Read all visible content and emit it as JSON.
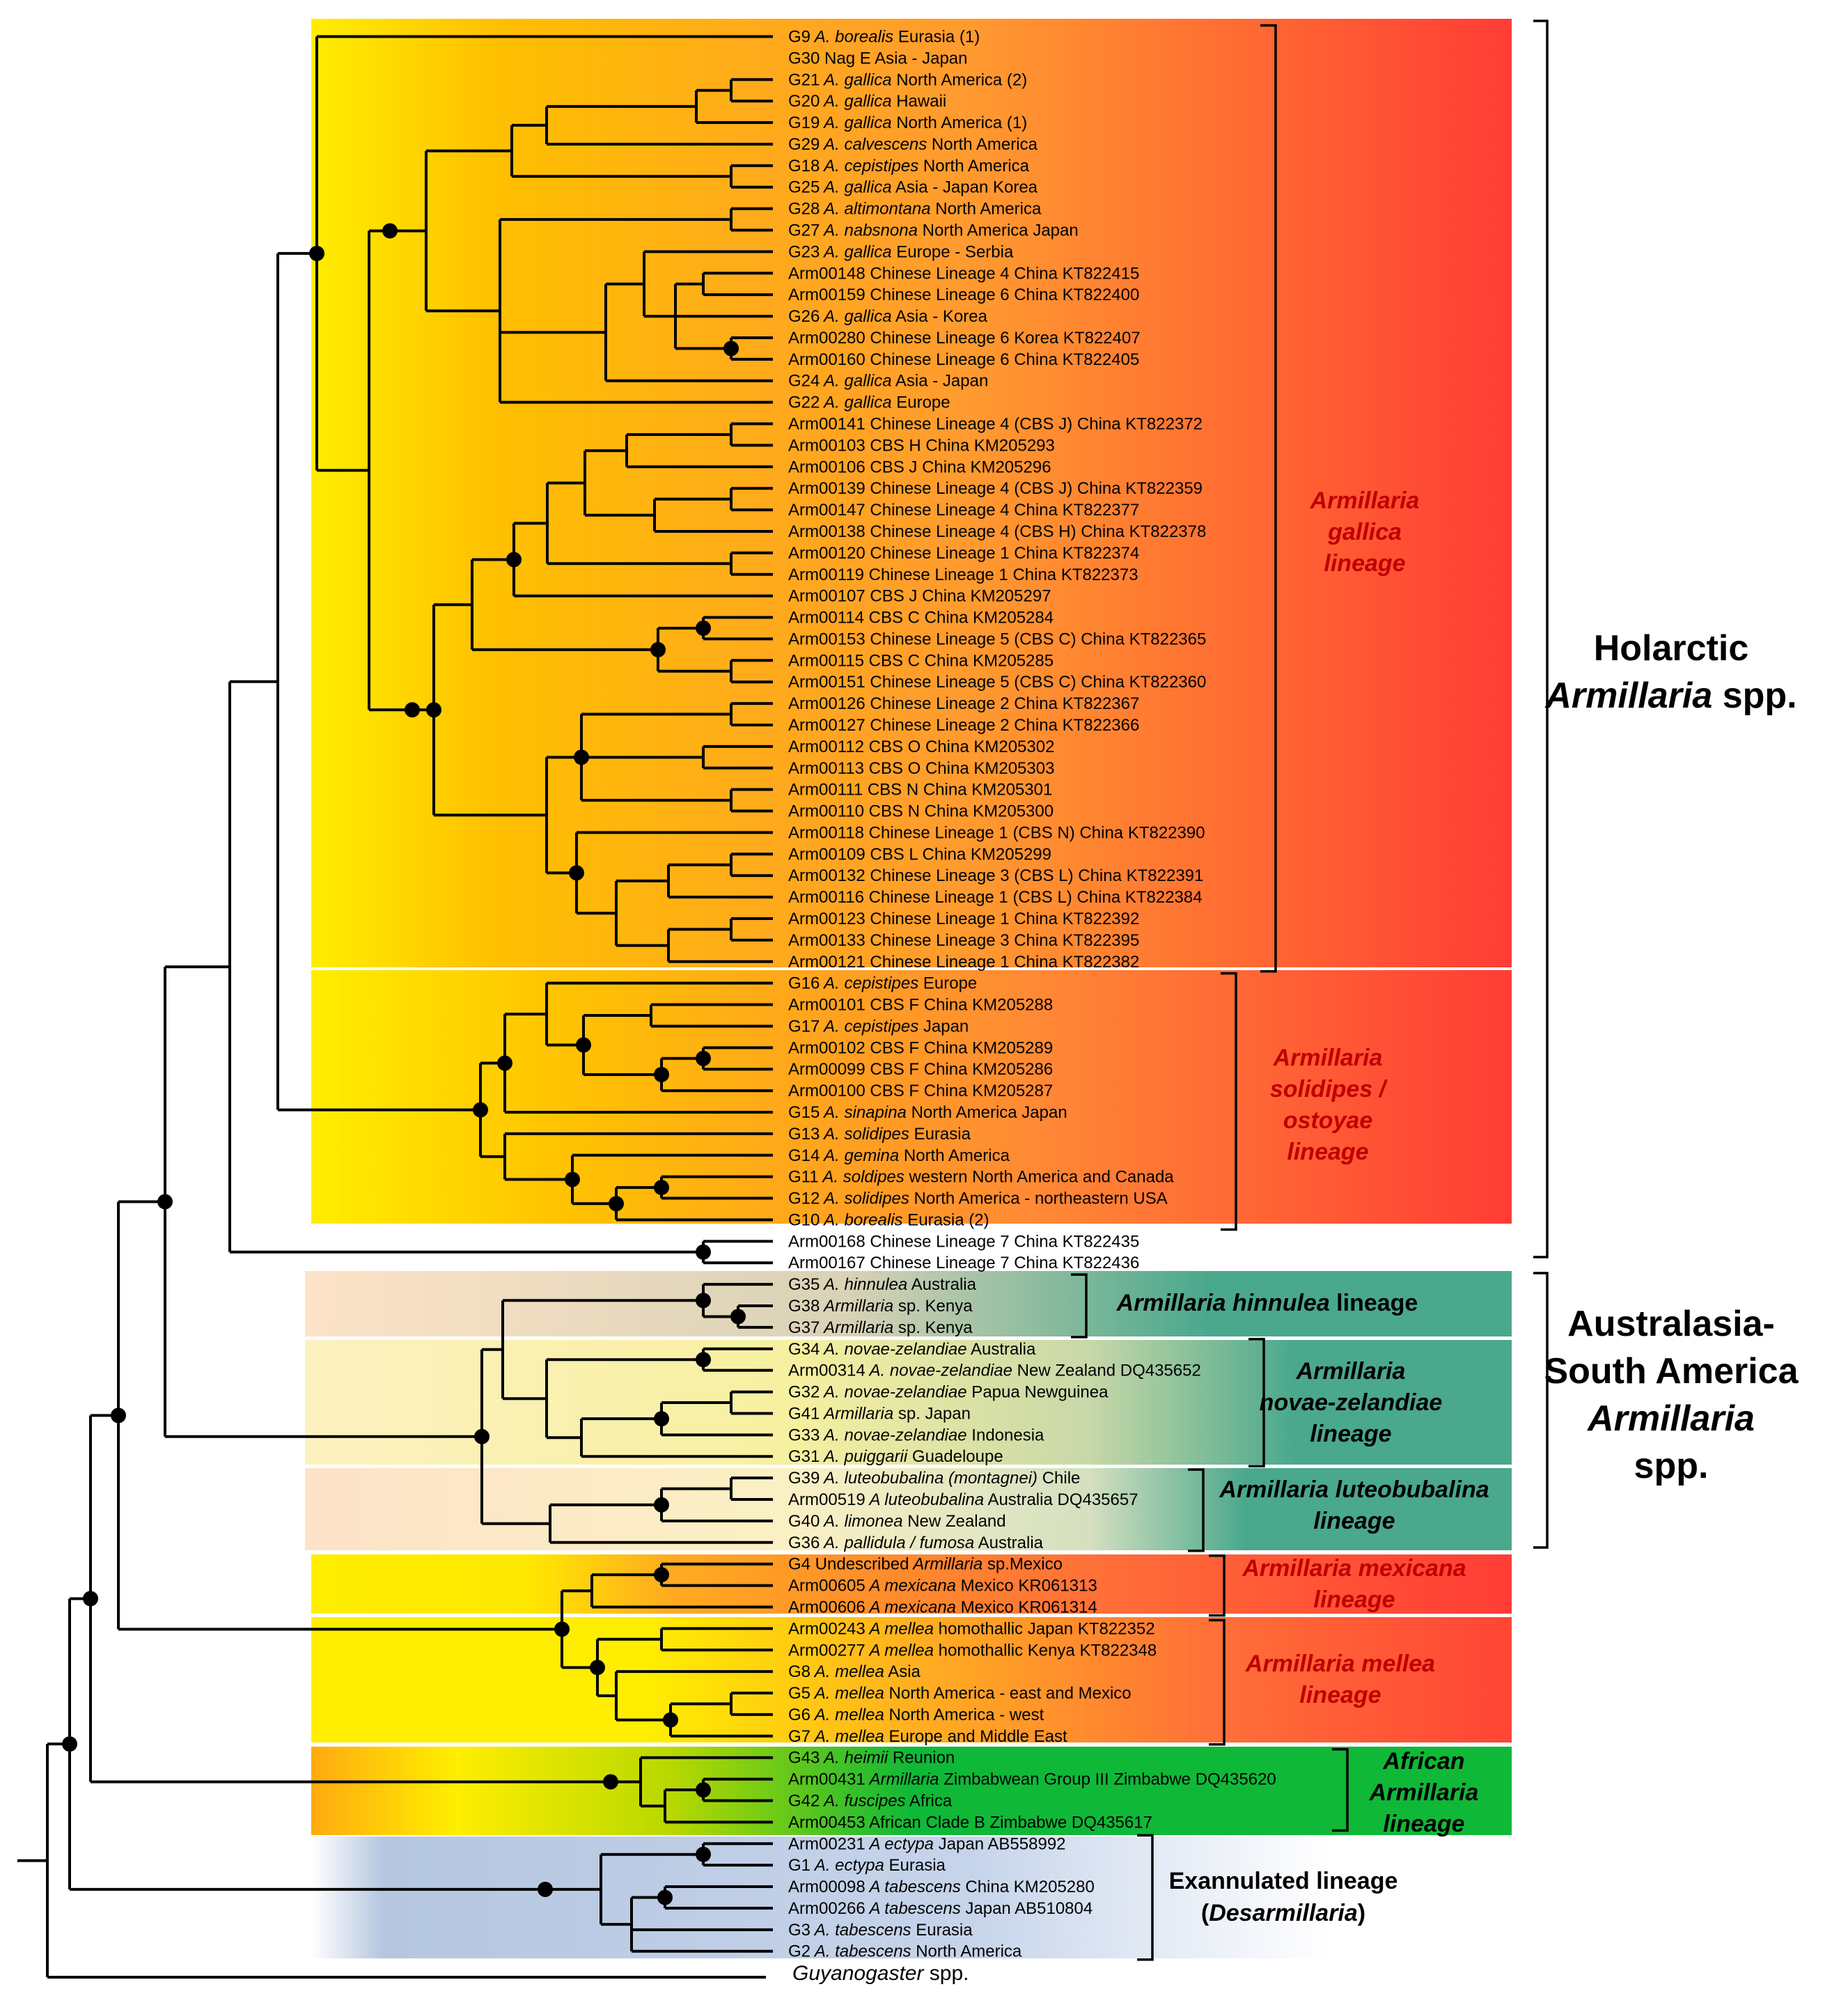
{
  "groups": {
    "holarctic": {
      "line1": "Holarctic",
      "line2a": "Armillaria",
      "line2b": " spp."
    },
    "australasia": {
      "line1": "Australasia-",
      "line2": "South America",
      "line3": "Armillaria",
      "line4": "spp."
    }
  },
  "lineages": {
    "gallica": {
      "l1": "Armillaria",
      "l2": "gallica",
      "l3": "lineage"
    },
    "solidipes": {
      "l1": "Armillaria",
      "l2": "solidipes /",
      "l3": "ostoyae",
      "l4": "lineage"
    },
    "hinnulea": {
      "l1": "Armillaria hinnulea",
      "l2": " lineage"
    },
    "novae": {
      "l1": "Armillaria",
      "l2": "novae-zelandiae",
      "l3": "lineage"
    },
    "luteobubalina": {
      "l1": "Armillaria luteobubalina",
      "l2": "lineage"
    },
    "mexicana": {
      "l1": "Armillaria mexicana",
      "l2": "lineage"
    },
    "mellea": {
      "l1": "Armillaria mellea",
      "l2": "lineage"
    },
    "african": {
      "l1": "African",
      "l2": "Armillaria",
      "l3": "lineage"
    },
    "exannulated": {
      "l1": "Exannulated lineage",
      "l2a": "(",
      "l2b": "Desarmillaria",
      "l2c": ")"
    }
  },
  "taxa": [
    {
      "pre": "G9",
      "sp": "A. borealis",
      "post": "Eurasia (1)"
    },
    {
      "pre": "G30 Nag E Asia - Japan",
      "sp": "",
      "post": ""
    },
    {
      "pre": "G21",
      "sp": "A. gallica",
      "post": "North America (2)"
    },
    {
      "pre": "G20",
      "sp": "A. gallica",
      "post": "Hawaii"
    },
    {
      "pre": "G19",
      "sp": "A. gallica",
      "post": "North America (1)"
    },
    {
      "pre": "G29",
      "sp": "A. calvescens",
      "post": "North America"
    },
    {
      "pre": "G18",
      "sp": "A. cepistipes",
      "post": "North America"
    },
    {
      "pre": "G25",
      "sp": "A. gallica",
      "post": "Asia - Japan Korea"
    },
    {
      "pre": "G28",
      "sp": "A. altimontana",
      "post": "North America"
    },
    {
      "pre": "G27",
      "sp": "A. nabsnona",
      "post": "North America Japan"
    },
    {
      "pre": "G23",
      "sp": "A. gallica",
      "post": "Europe - Serbia"
    },
    {
      "pre": "Arm00148 Chinese Lineage 4 China KT822415",
      "sp": "",
      "post": ""
    },
    {
      "pre": "Arm00159 Chinese Lineage 6 China KT822400",
      "sp": "",
      "post": ""
    },
    {
      "pre": "G26",
      "sp": "A. gallica",
      "post": "Asia - Korea"
    },
    {
      "pre": "Arm00280 Chinese Lineage 6 Korea KT822407",
      "sp": "",
      "post": ""
    },
    {
      "pre": "Arm00160 Chinese Lineage 6 China KT822405",
      "sp": "",
      "post": ""
    },
    {
      "pre": "G24",
      "sp": "A. gallica",
      "post": "Asia - Japan"
    },
    {
      "pre": "G22",
      "sp": "A. gallica",
      "post": "Europe"
    },
    {
      "pre": "Arm00141 Chinese Lineage 4 (CBS J) China KT822372",
      "sp": "",
      "post": ""
    },
    {
      "pre": "Arm00103 CBS H China KM205293",
      "sp": "",
      "post": ""
    },
    {
      "pre": "Arm00106 CBS J China KM205296",
      "sp": "",
      "post": ""
    },
    {
      "pre": "Arm00139 Chinese Lineage 4 (CBS J) China KT822359",
      "sp": "",
      "post": ""
    },
    {
      "pre": "Arm00147 Chinese Lineage 4 China KT822377",
      "sp": "",
      "post": ""
    },
    {
      "pre": "Arm00138 Chinese Lineage 4 (CBS H) China KT822378",
      "sp": "",
      "post": ""
    },
    {
      "pre": "Arm00120 Chinese Lineage 1 China KT822374",
      "sp": "",
      "post": ""
    },
    {
      "pre": "Arm00119 Chinese Lineage 1 China KT822373",
      "sp": "",
      "post": ""
    },
    {
      "pre": "Arm00107 CBS J China KM205297",
      "sp": "",
      "post": ""
    },
    {
      "pre": "Arm00114 CBS C China KM205284",
      "sp": "",
      "post": ""
    },
    {
      "pre": "Arm00153 Chinese Lineage 5 (CBS C) China KT822365",
      "sp": "",
      "post": ""
    },
    {
      "pre": "Arm00115 CBS C China KM205285",
      "sp": "",
      "post": ""
    },
    {
      "pre": "Arm00151 Chinese Lineage 5 (CBS C) China KT822360",
      "sp": "",
      "post": ""
    },
    {
      "pre": "Arm00126 Chinese Lineage 2 China KT822367",
      "sp": "",
      "post": ""
    },
    {
      "pre": "Arm00127 Chinese Lineage 2 China KT822366",
      "sp": "",
      "post": ""
    },
    {
      "pre": "Arm00112 CBS O China KM205302",
      "sp": "",
      "post": ""
    },
    {
      "pre": "Arm00113 CBS O China KM205303",
      "sp": "",
      "post": ""
    },
    {
      "pre": "Arm00111 CBS N China KM205301",
      "sp": "",
      "post": ""
    },
    {
      "pre": "Arm00110 CBS N China KM205300",
      "sp": "",
      "post": ""
    },
    {
      "pre": "Arm00118 Chinese Lineage 1 (CBS N) China KT822390",
      "sp": "",
      "post": ""
    },
    {
      "pre": "Arm00109 CBS L China KM205299",
      "sp": "",
      "post": ""
    },
    {
      "pre": "Arm00132 Chinese Lineage 3 (CBS L) China KT822391",
      "sp": "",
      "post": ""
    },
    {
      "pre": "Arm00116 Chinese Lineage 1 (CBS L) China KT822384",
      "sp": "",
      "post": ""
    },
    {
      "pre": "Arm00123 Chinese Lineage 1 China KT822392",
      "sp": "",
      "post": ""
    },
    {
      "pre": "Arm00133 Chinese Lineage 3 China KT822395",
      "sp": "",
      "post": ""
    },
    {
      "pre": "Arm00121 Chinese Lineage 1 China KT822382",
      "sp": "",
      "post": ""
    },
    {
      "pre": "G16",
      "sp": "A. cepistipes",
      "post": "Europe"
    },
    {
      "pre": "Arm00101 CBS F China KM205288",
      "sp": "",
      "post": ""
    },
    {
      "pre": "G17",
      "sp": "A. cepistipes",
      "post": "Japan"
    },
    {
      "pre": "Arm00102 CBS F China KM205289",
      "sp": "",
      "post": ""
    },
    {
      "pre": "Arm00099 CBS F China KM205286",
      "sp": "",
      "post": ""
    },
    {
      "pre": "Arm00100 CBS F China KM205287",
      "sp": "",
      "post": ""
    },
    {
      "pre": "G15",
      "sp": "A. sinapina",
      "post": "North America Japan"
    },
    {
      "pre": "G13",
      "sp": "A. solidipes",
      "post": "Eurasia"
    },
    {
      "pre": "G14",
      "sp": "A. gemina",
      "post": "North America"
    },
    {
      "pre": "G11",
      "sp": "A. soldipes",
      "post": "western North America and Canada"
    },
    {
      "pre": "G12",
      "sp": "A. solidipes",
      "post": "North America - northeastern USA"
    },
    {
      "pre": "G10",
      "sp": "A. borealis",
      "post": "Eurasia (2)"
    },
    {
      "pre": "Arm00168 Chinese Lineage 7 China KT822435",
      "sp": "",
      "post": ""
    },
    {
      "pre": "Arm00167 Chinese Lineage 7 China KT822436",
      "sp": "",
      "post": ""
    },
    {
      "pre": "G35",
      "sp": "A. hinnulea",
      "post": "Australia"
    },
    {
      "pre": "G38",
      "sp": "Armillaria",
      "post": "sp. Kenya"
    },
    {
      "pre": "G37",
      "sp": "Armillaria",
      "post": "sp. Kenya"
    },
    {
      "pre": "G34",
      "sp": "A. novae-zelandiae",
      "post": "Australia"
    },
    {
      "pre": "Arm00314",
      "sp": "A. novae-zelandiae",
      "post": "New Zealand DQ435652"
    },
    {
      "pre": "G32",
      "sp": "A. novae-zelandiae",
      "post": "Papua Newguinea"
    },
    {
      "pre": "G41",
      "sp": "Armillaria",
      "post": "sp. Japan"
    },
    {
      "pre": "G33",
      "sp": "A. novae-zelandiae",
      "post": "Indonesia"
    },
    {
      "pre": "G31",
      "sp": "A. puiggarii",
      "post": "Guadeloupe"
    },
    {
      "pre": "G39",
      "sp": "A. luteobubalina (montagnei)",
      "post": "Chile"
    },
    {
      "pre": "Arm00519",
      "sp": "A luteobubalina",
      "post": "Australia DQ435657"
    },
    {
      "pre": "G40",
      "sp": "A. limonea",
      "post": "New Zealand"
    },
    {
      "pre": "G36",
      "sp": "A. pallidula / fumosa",
      "post": "Australia"
    },
    {
      "pre": "G4 Undescribed",
      "sp": "Armillaria",
      "post": "sp.Mexico"
    },
    {
      "pre": "Arm00605",
      "sp": "A mexicana",
      "post": "Mexico KR061313"
    },
    {
      "pre": "Arm00606",
      "sp": "A mexicana",
      "post": "Mexico KR061314"
    },
    {
      "pre": "Arm00243",
      "sp": "A mellea",
      "post": "homothallic Japan KT822352"
    },
    {
      "pre": "Arm00277",
      "sp": "A mellea",
      "post": "homothallic Kenya KT822348"
    },
    {
      "pre": "G8",
      "sp": "A. mellea",
      "post": "Asia"
    },
    {
      "pre": "G5",
      "sp": "A. mellea",
      "post": "North America - east and Mexico"
    },
    {
      "pre": "G6",
      "sp": "A. mellea",
      "post": "North America - west"
    },
    {
      "pre": "G7",
      "sp": "A. mellea",
      "post": "Europe and Middle East"
    },
    {
      "pre": "G43",
      "sp": "A. heimii",
      "post": "Reunion"
    },
    {
      "pre": "Arm00431",
      "sp": "Armillaria",
      "post": "Zimbabwean Group III Zimbabwe DQ435620"
    },
    {
      "pre": "G42",
      "sp": "A. fuscipes",
      "post": "Africa"
    },
    {
      "pre": "Arm00453 African Clade B Zimbabwe DQ435617",
      "sp": "",
      "post": ""
    },
    {
      "pre": "Arm00231",
      "sp": "A ectypa",
      "post": "Japan AB558992"
    },
    {
      "pre": "G1",
      "sp": "A. ectypa",
      "post": "Eurasia"
    },
    {
      "pre": "Arm00098",
      "sp": "A tabescens",
      "post": "China KM205280"
    },
    {
      "pre": "Arm00266",
      "sp": "A tabescens",
      "post": "Japan AB510804"
    },
    {
      "pre": "G3",
      "sp": "A. tabescens",
      "post": "Eurasia"
    },
    {
      "pre": "G2",
      "sp": "A. tabescens",
      "post": "North America"
    }
  ],
  "outgroup": {
    "sp": "Guyanogaster",
    "post": " spp."
  },
  "colors": {
    "yellow": "#ffee00",
    "orange": "#ff9a30",
    "red": "#ff3c35",
    "teal": "#4aa88c",
    "green": "#10b838",
    "peach": "#fde3c8",
    "blue_grey": "#b5c6e0",
    "line": "#000000"
  }
}
